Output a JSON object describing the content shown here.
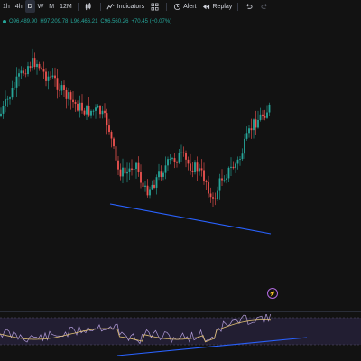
{
  "toolbar": {
    "intervals": [
      {
        "label": "1h",
        "active": false
      },
      {
        "label": "4h",
        "active": false
      },
      {
        "label": "D",
        "active": true
      },
      {
        "label": "W",
        "active": false
      },
      {
        "label": "M",
        "active": false
      },
      {
        "label": "12M",
        "active": false
      }
    ],
    "indicators_label": "Indicators",
    "alert_label": "Alert",
    "replay_label": "Replay"
  },
  "ohlc": {
    "open": "O96,489.90",
    "high": "H97,209.78",
    "low": "L96,466.21",
    "close": "C96,560.26",
    "change": "+70.45 (+0.07%)"
  },
  "colors": {
    "up": "#26a69a",
    "down": "#ef5350",
    "trendline": "#2962ff",
    "rsi_line": "#b39ddb",
    "rsi_ma": "#e0c072",
    "rsi_band": "#2a2340",
    "background": "#121212"
  },
  "icons": [
    "candlestick-icon",
    "indicators-icon",
    "templates-icon",
    "alert-icon",
    "replay-icon",
    "undo-icon",
    "redo-icon",
    "lightning-icon"
  ]
}
